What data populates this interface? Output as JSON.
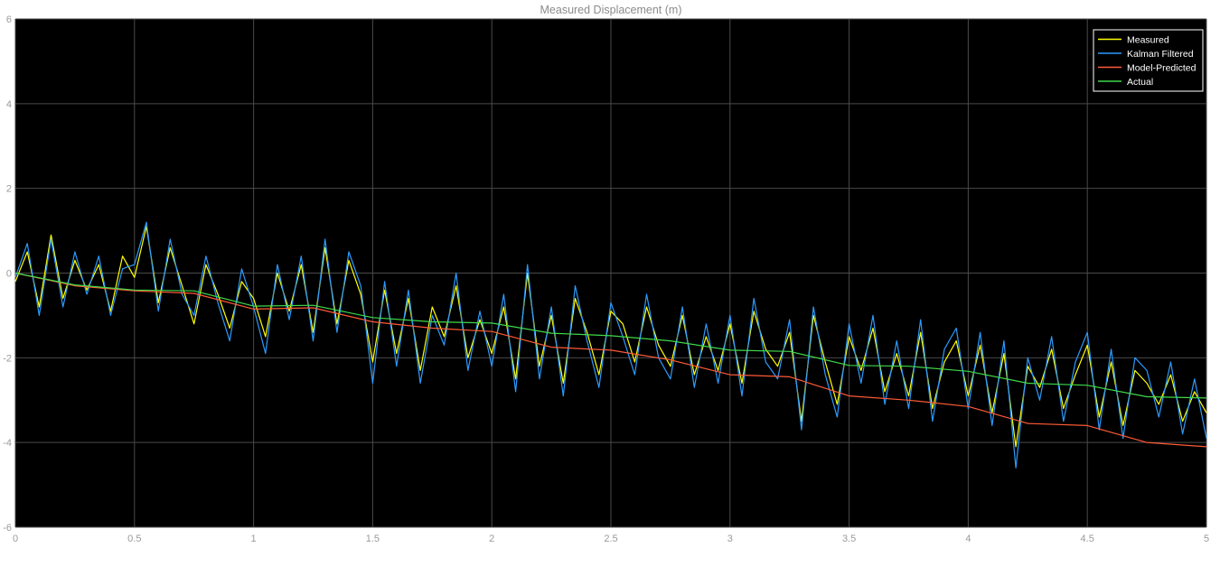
{
  "chart_data": {
    "type": "line",
    "title": "Measured Displacement (m)",
    "xlabel": "",
    "ylabel": "",
    "xlim": [
      0,
      5
    ],
    "ylim": [
      -6,
      6
    ],
    "x_ticks": [
      0,
      0.5,
      1,
      1.5,
      2,
      2.5,
      3,
      3.5,
      4,
      4.5,
      5
    ],
    "x_tick_labels": [
      "0",
      "0.5",
      "1",
      "1.5",
      "2",
      "2.5",
      "3",
      "3.5",
      "4",
      "4.5",
      "5"
    ],
    "y_ticks": [
      -6,
      -4,
      -2,
      0,
      2,
      4,
      6
    ],
    "y_tick_labels": [
      "-6",
      "-4",
      "-2",
      "0",
      "2",
      "4",
      "6"
    ],
    "grid": true,
    "background": "#000000",
    "legend_position": "top-right",
    "series": [
      {
        "name": "Measured",
        "color": "#ffff00",
        "x": [
          0,
          0.05,
          0.1,
          0.15,
          0.2,
          0.25,
          0.3,
          0.35,
          0.4,
          0.45,
          0.5,
          0.55,
          0.6,
          0.65,
          0.7,
          0.75,
          0.8,
          0.85,
          0.9,
          0.95,
          1.0,
          1.05,
          1.1,
          1.15,
          1.2,
          1.25,
          1.3,
          1.35,
          1.4,
          1.45,
          1.5,
          1.55,
          1.6,
          1.65,
          1.7,
          1.75,
          1.8,
          1.85,
          1.9,
          1.95,
          2.0,
          2.05,
          2.1,
          2.15,
          2.2,
          2.25,
          2.3,
          2.35,
          2.4,
          2.45,
          2.5,
          2.55,
          2.6,
          2.65,
          2.7,
          2.75,
          2.8,
          2.85,
          2.9,
          2.95,
          3.0,
          3.05,
          3.1,
          3.15,
          3.2,
          3.25,
          3.3,
          3.35,
          3.4,
          3.45,
          3.5,
          3.55,
          3.6,
          3.65,
          3.7,
          3.75,
          3.8,
          3.85,
          3.9,
          3.95,
          4.0,
          4.05,
          4.1,
          4.15,
          4.2,
          4.25,
          4.3,
          4.35,
          4.4,
          4.45,
          4.5,
          4.55,
          4.6,
          4.65,
          4.7,
          4.75,
          4.8,
          4.85,
          4.9,
          4.95,
          5.0
        ],
        "y": [
          -0.2,
          0.5,
          -0.8,
          0.9,
          -0.6,
          0.3,
          -0.4,
          0.2,
          -0.9,
          0.4,
          -0.1,
          1.1,
          -0.7,
          0.6,
          -0.3,
          -1.2,
          0.2,
          -0.5,
          -1.3,
          -0.2,
          -0.6,
          -1.5,
          0.0,
          -0.9,
          0.2,
          -1.4,
          0.6,
          -1.2,
          0.3,
          -0.5,
          -2.1,
          -0.4,
          -1.9,
          -0.6,
          -2.3,
          -0.8,
          -1.5,
          -0.3,
          -2.0,
          -1.1,
          -1.9,
          -0.8,
          -2.5,
          0.0,
          -2.2,
          -1.0,
          -2.6,
          -0.6,
          -1.4,
          -2.4,
          -0.9,
          -1.2,
          -2.1,
          -0.8,
          -1.7,
          -2.2,
          -1.0,
          -2.4,
          -1.5,
          -2.3,
          -1.2,
          -2.6,
          -0.9,
          -1.8,
          -2.2,
          -1.4,
          -3.5,
          -1.0,
          -2.1,
          -3.1,
          -1.5,
          -2.3,
          -1.3,
          -2.8,
          -1.9,
          -2.9,
          -1.4,
          -3.2,
          -2.1,
          -1.6,
          -2.9,
          -1.7,
          -3.3,
          -1.9,
          -4.1,
          -2.2,
          -2.7,
          -1.8,
          -3.2,
          -2.4,
          -1.7,
          -3.4,
          -2.1,
          -3.6,
          -2.3,
          -2.6,
          -3.1,
          -2.4,
          -3.5,
          -2.8,
          -3.3
        ]
      },
      {
        "name": "Kalman Filtered",
        "color": "#2b9bff",
        "x": [
          0,
          0.05,
          0.1,
          0.15,
          0.2,
          0.25,
          0.3,
          0.35,
          0.4,
          0.45,
          0.5,
          0.55,
          0.6,
          0.65,
          0.7,
          0.75,
          0.8,
          0.85,
          0.9,
          0.95,
          1.0,
          1.05,
          1.1,
          1.15,
          1.2,
          1.25,
          1.3,
          1.35,
          1.4,
          1.45,
          1.5,
          1.55,
          1.6,
          1.65,
          1.7,
          1.75,
          1.8,
          1.85,
          1.9,
          1.95,
          2.0,
          2.05,
          2.1,
          2.15,
          2.2,
          2.25,
          2.3,
          2.35,
          2.4,
          2.45,
          2.5,
          2.55,
          2.6,
          2.65,
          2.7,
          2.75,
          2.8,
          2.85,
          2.9,
          2.95,
          3.0,
          3.05,
          3.1,
          3.15,
          3.2,
          3.25,
          3.3,
          3.35,
          3.4,
          3.45,
          3.5,
          3.55,
          3.6,
          3.65,
          3.7,
          3.75,
          3.8,
          3.85,
          3.9,
          3.95,
          4.0,
          4.05,
          4.1,
          4.15,
          4.2,
          4.25,
          4.3,
          4.35,
          4.4,
          4.45,
          4.5,
          4.55,
          4.6,
          4.65,
          4.7,
          4.75,
          4.8,
          4.85,
          4.9,
          4.95,
          5.0
        ],
        "y": [
          -0.1,
          0.7,
          -1.0,
          0.8,
          -0.8,
          0.5,
          -0.5,
          0.4,
          -1.0,
          0.1,
          0.2,
          1.2,
          -0.9,
          0.8,
          -0.5,
          -1.0,
          0.4,
          -0.7,
          -1.6,
          0.1,
          -0.8,
          -1.9,
          0.2,
          -1.1,
          0.4,
          -1.6,
          0.8,
          -1.4,
          0.5,
          -0.3,
          -2.6,
          -0.2,
          -2.2,
          -0.4,
          -2.6,
          -1.0,
          -1.7,
          0.0,
          -2.3,
          -0.9,
          -2.2,
          -0.5,
          -2.8,
          0.2,
          -2.5,
          -0.8,
          -2.9,
          -0.3,
          -1.6,
          -2.7,
          -0.7,
          -1.5,
          -2.4,
          -0.5,
          -2.0,
          -2.5,
          -0.8,
          -2.7,
          -1.2,
          -2.6,
          -1.0,
          -2.9,
          -0.6,
          -2.1,
          -2.5,
          -1.1,
          -3.7,
          -0.8,
          -2.4,
          -3.4,
          -1.2,
          -2.6,
          -1.0,
          -3.1,
          -1.6,
          -3.2,
          -1.1,
          -3.5,
          -1.8,
          -1.3,
          -3.2,
          -1.4,
          -3.6,
          -1.6,
          -4.6,
          -2.0,
          -3.0,
          -1.5,
          -3.5,
          -2.1,
          -1.4,
          -3.7,
          -1.8,
          -3.9,
          -2.0,
          -2.3,
          -3.4,
          -2.1,
          -3.8,
          -2.5,
          -3.9
        ]
      },
      {
        "name": "Model-Predicted",
        "color": "#ff5a36",
        "x": [
          0,
          0.25,
          0.5,
          0.75,
          1.0,
          1.25,
          1.5,
          1.75,
          2.0,
          2.25,
          2.5,
          2.75,
          3.0,
          3.25,
          3.5,
          3.75,
          4.0,
          4.25,
          4.5,
          4.75,
          5.0
        ],
        "y": [
          0.0,
          -0.3,
          -0.42,
          -0.48,
          -0.85,
          -0.82,
          -1.15,
          -1.3,
          -1.38,
          -1.75,
          -1.82,
          -2.05,
          -2.4,
          -2.45,
          -2.9,
          -3.0,
          -3.15,
          -3.55,
          -3.6,
          -4.0,
          -4.1
        ]
      },
      {
        "name": "Actual",
        "color": "#3fd94a",
        "x": [
          0,
          0.25,
          0.5,
          0.75,
          1.0,
          1.25,
          1.5,
          1.75,
          2.0,
          2.25,
          2.5,
          2.75,
          3.0,
          3.25,
          3.5,
          3.75,
          4.0,
          4.25,
          4.5,
          4.75,
          5.0
        ],
        "y": [
          0.0,
          -0.28,
          -0.4,
          -0.42,
          -0.78,
          -0.76,
          -1.05,
          -1.15,
          -1.18,
          -1.42,
          -1.48,
          -1.6,
          -1.82,
          -1.85,
          -2.18,
          -2.2,
          -2.32,
          -2.6,
          -2.65,
          -2.92,
          -2.95
        ]
      }
    ]
  }
}
